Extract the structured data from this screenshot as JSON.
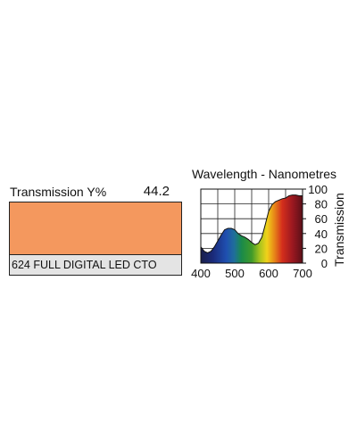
{
  "filter": {
    "transmission_label": "Transmission Y%",
    "transmission_value": "44.2",
    "name": "624 FULL DIGITAL LED CTO",
    "swatch_color": "#F4985E"
  },
  "chart_data": {
    "type": "area",
    "title": "Wavelength - Nanometres",
    "xlabel": "",
    "ylabel": "Transmission",
    "xlim": [
      400,
      700
    ],
    "ylim": [
      0,
      100
    ],
    "x_ticks": [
      400,
      500,
      600,
      700
    ],
    "y_ticks": [
      0,
      20,
      40,
      60,
      80,
      100
    ],
    "grid": true,
    "fill": "visible-spectrum gradient",
    "series": [
      {
        "x": [
          400,
          410,
          420,
          430,
          440,
          450,
          460,
          470,
          480,
          490,
          500,
          510,
          520,
          530,
          540,
          550,
          560,
          570,
          580,
          590,
          600,
          610,
          620,
          630,
          640,
          650,
          660,
          670,
          680,
          690,
          700
        ],
        "y": [
          22,
          16,
          14,
          16,
          22,
          30,
          38,
          45,
          47,
          47,
          45,
          40,
          37,
          35,
          32,
          28,
          25,
          27,
          35,
          52,
          70,
          79,
          83,
          85,
          87,
          88,
          91,
          92,
          92,
          91,
          91
        ]
      }
    ]
  }
}
